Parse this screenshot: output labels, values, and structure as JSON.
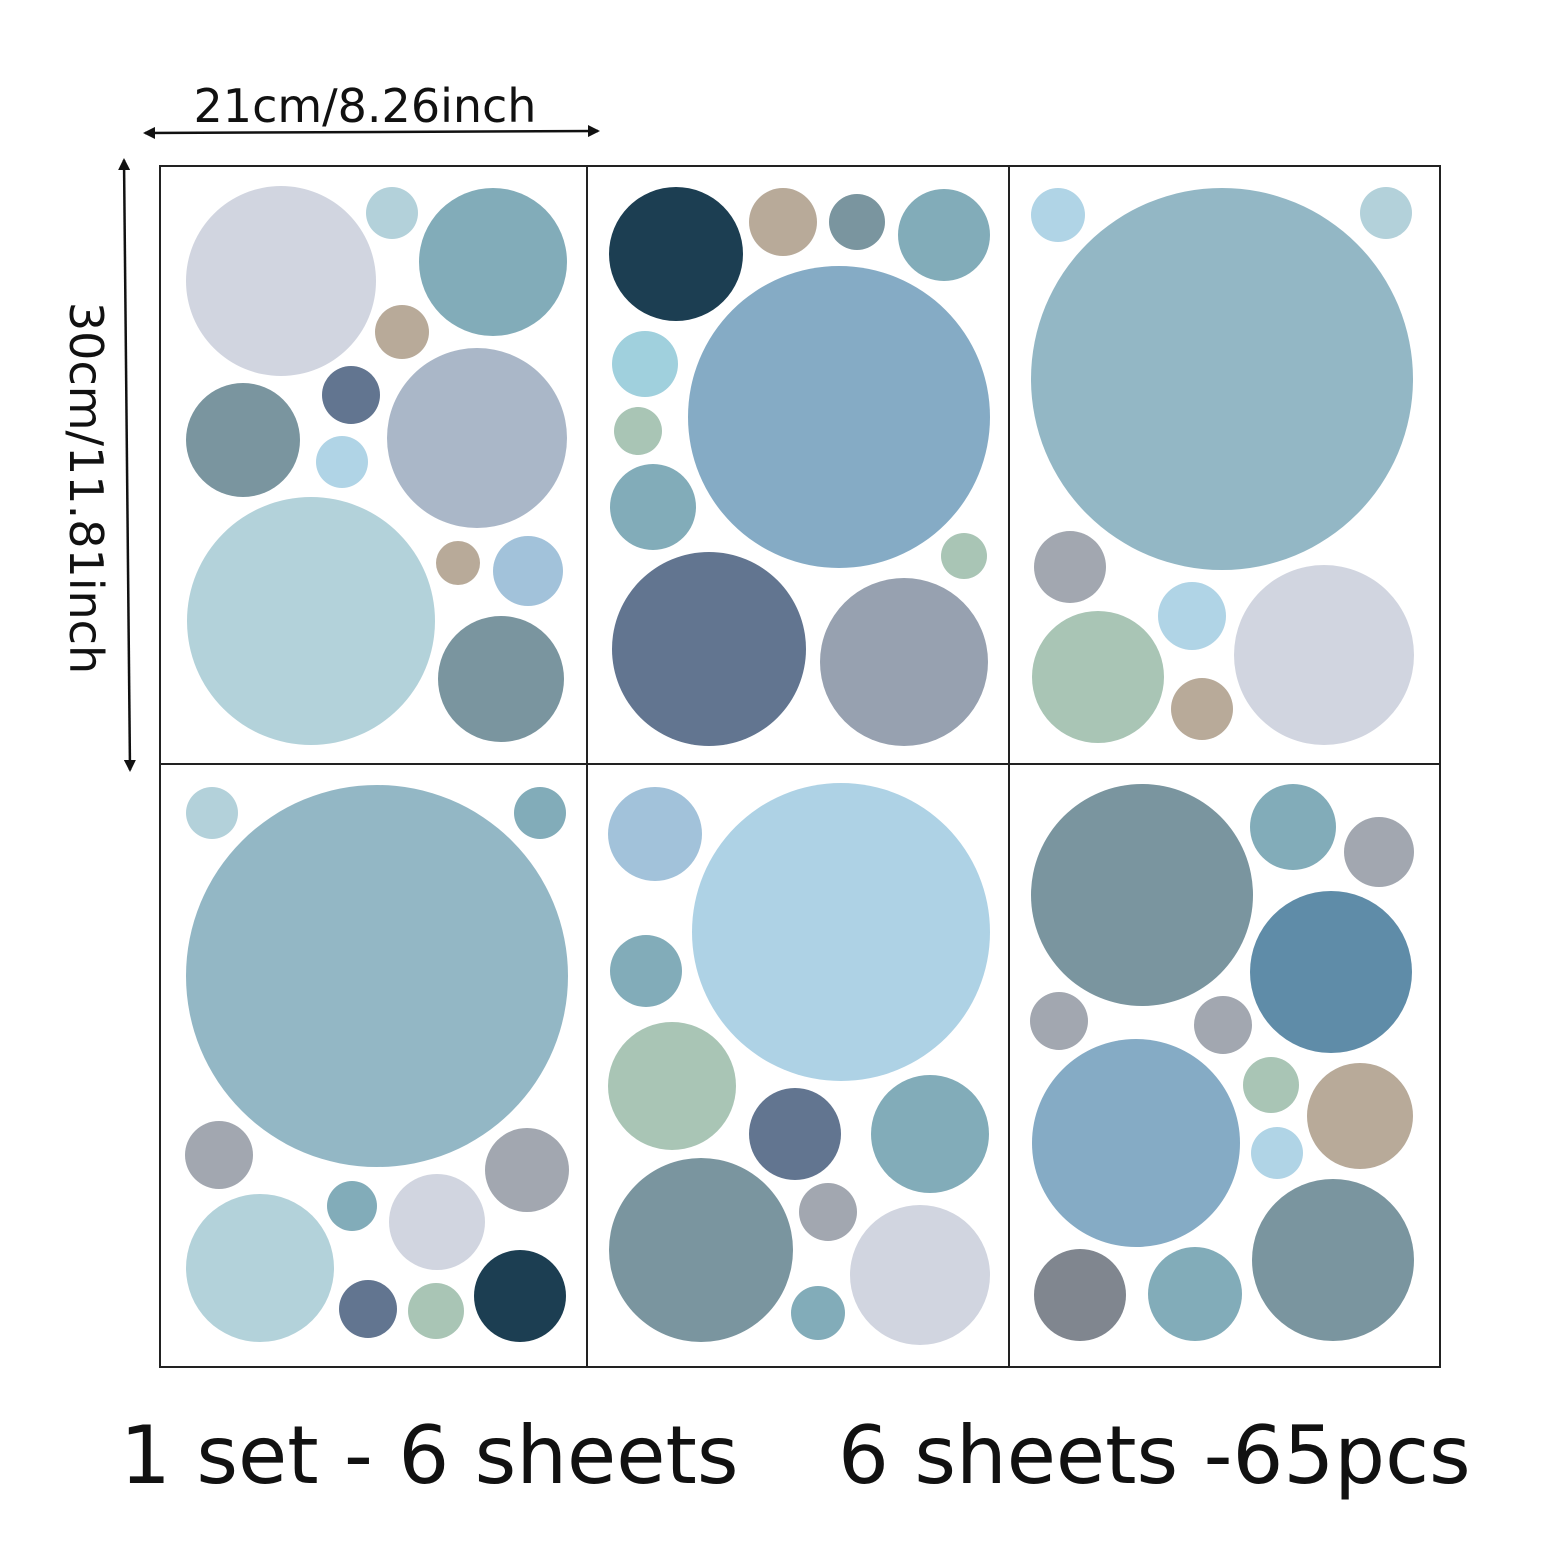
{
  "dimensions": {
    "width_label": "21cm/8.26inch",
    "height_label": "30cm/11.81inch"
  },
  "captions": {
    "set": "1 set - 6 sheets",
    "count": "6 sheets -65pcs"
  }
}
